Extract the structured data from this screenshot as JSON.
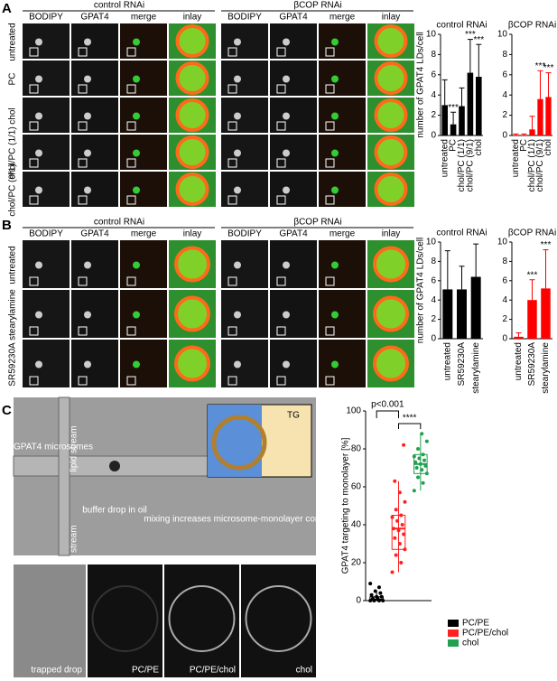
{
  "figure": {
    "panels": [
      "A",
      "B",
      "C"
    ]
  },
  "panel_a": {
    "groups": [
      "control RNAi",
      "βCOP RNAi"
    ],
    "columns": [
      "BODIPY",
      "GPAT4",
      "merge",
      "inlay"
    ],
    "rows": [
      "untreated",
      "PC",
      "chol",
      "chol/PC (1/1)",
      "chol/PC (9/1)"
    ]
  },
  "panel_b": {
    "groups": [
      "control RNAi",
      "βCOP RNAi"
    ],
    "columns": [
      "BODIPY",
      "GPAT4",
      "merge",
      "inlay"
    ],
    "rows": [
      "untreated",
      "stearylamine",
      "SR59230A"
    ]
  },
  "panel_c": {
    "labels": [
      "GPAT4 microsomes",
      "lipid stream",
      "lipid stream",
      "buffer drop in oil",
      "mixing increases microsome-monolayer contact",
      "TG"
    ],
    "bottom_labels": [
      "trapped drop",
      "PC/PE",
      "PC/PE/chol",
      "chol"
    ]
  },
  "chart_data": [
    {
      "type": "bar",
      "title": "control RNAi",
      "y_label": "number of GPAT4 LDs/cell",
      "categories": [
        "untreated",
        "PC",
        "chol/PC (1/1)",
        "chol/PC (9/1)",
        "chol"
      ],
      "values": [
        3.0,
        1.1,
        2.9,
        6.2,
        5.8
      ],
      "errors": [
        2.5,
        1.2,
        1.8,
        3.3,
        3.2
      ],
      "significance": [
        null,
        "***",
        null,
        "***",
        "***"
      ],
      "color": "#000000",
      "ylim": [
        0,
        10
      ],
      "yticks": [
        0,
        2,
        4,
        6,
        8,
        10
      ]
    },
    {
      "type": "bar",
      "title": "βCOP RNAi",
      "categories": [
        "untreated",
        "PC",
        "chol/PC (1/1)",
        "chol/PC (9/1)",
        "chol"
      ],
      "values": [
        0.05,
        0.05,
        0.6,
        3.6,
        3.8
      ],
      "errors": [
        0.1,
        0.1,
        1.3,
        2.8,
        2.4
      ],
      "significance": [
        null,
        null,
        null,
        "***",
        "***"
      ],
      "color": "#ff0000",
      "ylim": [
        0,
        10
      ],
      "yticks": [
        0,
        2,
        4,
        6,
        8,
        10
      ]
    },
    {
      "type": "bar",
      "title": "control RNAi",
      "y_label": "number of GPAT4 LDs/cell",
      "categories": [
        "untreated",
        "SR59230A",
        "stearylamine"
      ],
      "values": [
        5.1,
        5.1,
        6.4
      ],
      "errors": [
        4.0,
        2.4,
        3.4
      ],
      "significance": [
        null,
        null,
        null
      ],
      "color": "#000000",
      "ylim": [
        0,
        10
      ],
      "yticks": [
        0,
        2,
        4,
        6,
        8,
        10
      ]
    },
    {
      "type": "bar",
      "title": "βCOP RNAi",
      "categories": [
        "untreated",
        "SR59230A",
        "stearylamine"
      ],
      "values": [
        0.2,
        4.0,
        5.2
      ],
      "errors": [
        0.4,
        2.1,
        4.0
      ],
      "significance": [
        null,
        "***",
        "***"
      ],
      "color": "#ff0000",
      "ylim": [
        0,
        10
      ],
      "yticks": [
        0,
        2,
        4,
        6,
        8,
        10
      ]
    },
    {
      "type": "box",
      "y_label": "GPAT4 targeting to monolayer [%]",
      "ylim": [
        0,
        100
      ],
      "yticks": [
        0,
        20,
        40,
        60,
        80,
        100
      ],
      "annotations": [
        "p<0.001",
        "****"
      ],
      "series": [
        {
          "name": "PC/PE",
          "color": "#000000",
          "min": 0,
          "q1": 0,
          "median": 0.5,
          "q3": 2,
          "max": 5,
          "points": [
            0,
            0,
            0,
            0,
            1,
            1,
            2,
            2,
            3,
            4,
            5,
            9,
            7
          ]
        },
        {
          "name": "PC/PE/chol",
          "color": "#ff2020",
          "min": 15,
          "q1": 27,
          "median": 38,
          "q3": 45,
          "max": 63,
          "points": [
            15,
            20,
            24,
            27,
            30,
            33,
            35,
            37,
            38,
            40,
            42,
            44,
            45,
            48,
            52,
            57,
            63,
            82
          ]
        },
        {
          "name": "chol",
          "color": "#22a050",
          "min": 58,
          "q1": 67,
          "median": 72,
          "q3": 77,
          "max": 88,
          "points": [
            58,
            62,
            65,
            67,
            69,
            70,
            71,
            72,
            73,
            74,
            75,
            76,
            77,
            80,
            84,
            88
          ]
        }
      ]
    }
  ]
}
